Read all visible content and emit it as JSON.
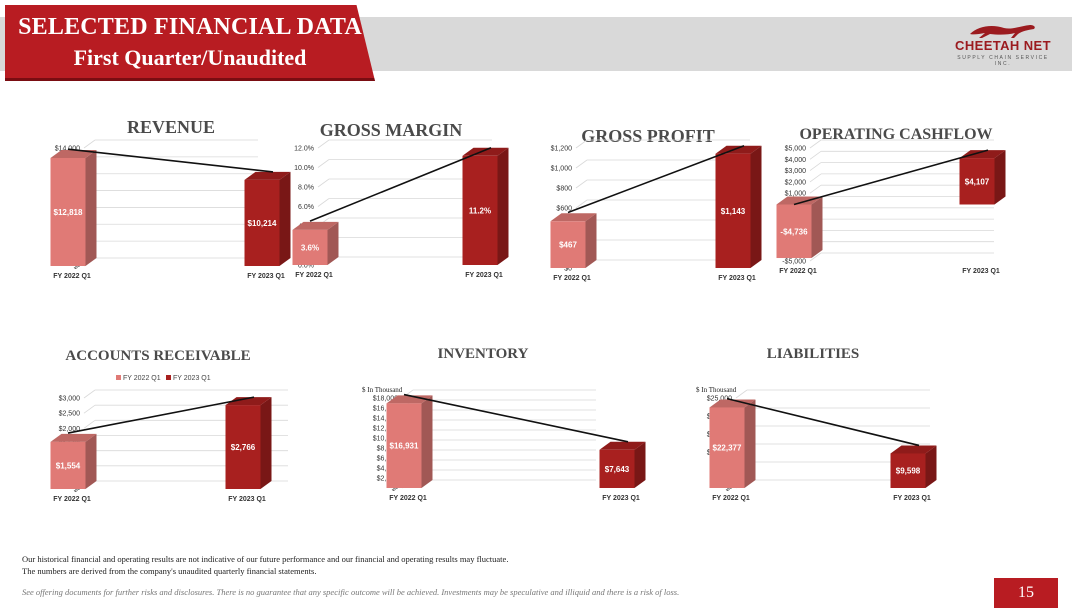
{
  "header": {
    "title_line1": "SELECTED FINANCIAL DATA",
    "title_line2": "First Quarter/Unaudited",
    "logo_name": "CHEETAH NET",
    "logo_sub": "SUPPLY CHAIN SERVICE INC."
  },
  "colors": {
    "accent": "#b81c22",
    "series_2022": "#e07a76",
    "series_2023": "#a8201f",
    "trend_line": "#111111"
  },
  "chart_data": [
    {
      "type": "bar",
      "title": "REVENUE",
      "categories": [
        "FY 2022 Q1",
        "FY 2023 Q1"
      ],
      "values": [
        12818,
        10214
      ],
      "data_labels": [
        "$12,818",
        "$10,214"
      ],
      "yticks": [
        "$-",
        "$2,000",
        "$4,000",
        "$6,000",
        "$8,000",
        "$10,000",
        "$12,000",
        "$14,000"
      ],
      "ylim": [
        0,
        14000
      ]
    },
    {
      "type": "bar",
      "title": "GROSS MARGIN",
      "categories": [
        "FY 2022 Q1",
        "FY 2023 Q1"
      ],
      "values": [
        3.6,
        11.2
      ],
      "data_labels": [
        "3.6%",
        "11.2%"
      ],
      "yticks": [
        "0.0%",
        "2.0%",
        "4.0%",
        "6.0%",
        "8.0%",
        "10.0%",
        "12.0%"
      ],
      "ylim": [
        0,
        12
      ]
    },
    {
      "type": "bar",
      "title": "GROSS PROFIT",
      "categories": [
        "FY 2022 Q1",
        "FY 2023 Q1"
      ],
      "values": [
        467,
        1143
      ],
      "data_labels": [
        "$467",
        "$1,143"
      ],
      "yticks": [
        "$0",
        "$200",
        "$400",
        "$600",
        "$800",
        "$1,000",
        "$1,200"
      ],
      "ylim": [
        0,
        1200
      ]
    },
    {
      "type": "bar",
      "title": "OPERATING CASHFLOW",
      "categories": [
        "FY 2022 Q1",
        "FY 2023 Q1"
      ],
      "values": [
        -4736,
        4107
      ],
      "data_labels": [
        "-$4,736",
        "$4,107"
      ],
      "yticks": [
        "-$5,000",
        "-$4,000",
        "-$3,000",
        "-$2,000",
        "-$1,000",
        "$0",
        "$1,000",
        "$2,000",
        "$3,000",
        "$4,000",
        "$5,000"
      ],
      "ylim": [
        -5000,
        5000
      ]
    },
    {
      "type": "bar",
      "title": "ACCOUNTS RECEIVABLE",
      "legend": [
        "FY 2022 Q1",
        "FY 2023 Q1"
      ],
      "categories": [
        "FY 2022 Q1",
        "FY 2023 Q1"
      ],
      "values": [
        1554,
        2766
      ],
      "data_labels": [
        "$1,554",
        "$2,766"
      ],
      "yticks": [
        "$-",
        "$500",
        "$1,000",
        "$1,500",
        "$2,000",
        "$2,500",
        "$3,000"
      ],
      "ylim": [
        0,
        3000
      ]
    },
    {
      "type": "bar",
      "title": "INVENTORY",
      "unit_note": "$ In Thousand",
      "categories": [
        "FY 2022 Q1",
        "FY 2023 Q1"
      ],
      "values": [
        16931,
        7643
      ],
      "data_labels": [
        "$16,931",
        "$7,643"
      ],
      "yticks": [
        "$-",
        "$2,000",
        "$4,000",
        "$6,000",
        "$8,000",
        "$10,000",
        "$12,000",
        "$14,000",
        "$16,000",
        "$18,000"
      ],
      "ylim": [
        0,
        18000
      ]
    },
    {
      "type": "bar",
      "title": "LIABILITIES",
      "unit_note": "$ In Thousand",
      "categories": [
        "FY 2022 Q1",
        "FY 2023 Q1"
      ],
      "values": [
        22377,
        9598
      ],
      "data_labels": [
        "$22,377",
        "$9,598"
      ],
      "yticks": [
        "$-",
        "$5,000",
        "$10,000",
        "$15,000",
        "$20,000",
        "$25,000"
      ],
      "ylim": [
        0,
        25000
      ]
    }
  ],
  "footer": {
    "note_line1": "Our historical financial and operating results are not indicative of our future performance and our financial and operating results may fluctuate.",
    "note_line2": "The numbers are derived from the company's unaudited quarterly financial statements.",
    "disclaimer": "See offering documents for further risks and disclosures. There is no guarantee that any specific outcome will be achieved. Investments may be speculative and illiquid and there is a risk of loss.",
    "page_number": "15"
  }
}
